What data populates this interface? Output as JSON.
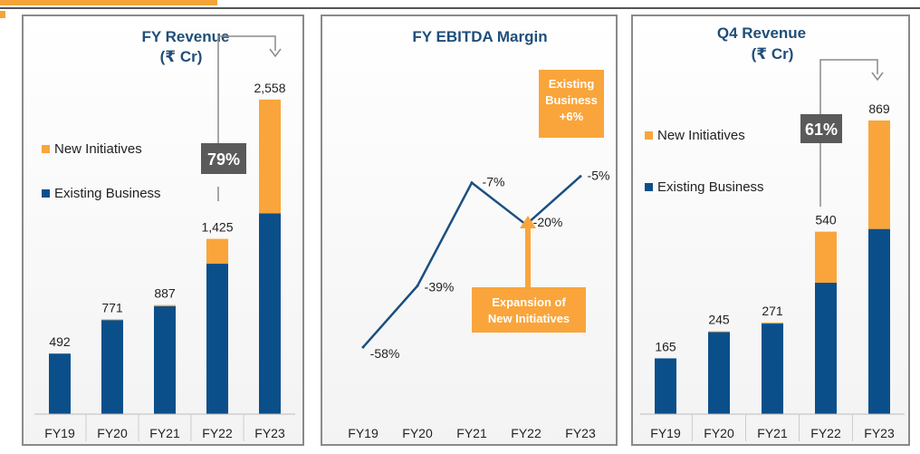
{
  "colors": {
    "existing": "#0b4f8a",
    "new": "#f9a53b",
    "title": "#1f4e79",
    "growth_box": "#5a5a5a",
    "callout": "#f9a53b"
  },
  "chart_data": [
    {
      "type": "bar",
      "stacked": true,
      "title": "FY Revenue",
      "subtitle": "(₹ Cr)",
      "categories": [
        "FY19",
        "FY20",
        "FY21",
        "FY22",
        "FY23"
      ],
      "totals": [
        "492",
        "771",
        "887",
        "1,425",
        "2,558"
      ],
      "series": [
        {
          "name": "Existing Business",
          "values": [
            492,
            765,
            877,
            1223,
            1632
          ]
        },
        {
          "name": "New Initiatives",
          "values": [
            0,
            6,
            10,
            202,
            926
          ]
        }
      ],
      "legend": "left",
      "growth_badge": "79%",
      "ylim": [
        0,
        2800
      ]
    },
    {
      "type": "line",
      "title": "FY EBITDA Margin",
      "categories": [
        "FY19",
        "FY20",
        "FY21",
        "FY22",
        "FY23"
      ],
      "values": [
        -58,
        -39,
        -7,
        -20,
        -5
      ],
      "labels": [
        "-58%",
        "-39%",
        "-7%",
        "-20%",
        "-5%"
      ],
      "annotations": {
        "top": [
          "Existing",
          "Business",
          "+6%"
        ],
        "bottom": [
          "Expansion of",
          "New Initiatives"
        ]
      },
      "ylim": [
        -65,
        5
      ]
    },
    {
      "type": "bar",
      "stacked": true,
      "title": "Q4 Revenue",
      "subtitle": "(₹ Cr)",
      "categories": [
        "FY19",
        "FY20",
        "FY21",
        "FY22",
        "FY23"
      ],
      "totals": [
        "165",
        "245",
        "271",
        "540",
        "869"
      ],
      "series": [
        {
          "name": "Existing Business",
          "values": [
            165,
            243,
            268,
            389,
            548
          ]
        },
        {
          "name": "New Initiatives",
          "values": [
            0,
            2,
            3,
            151,
            321
          ]
        }
      ],
      "legend": "left",
      "growth_badge": "61%",
      "ylim": [
        0,
        960
      ]
    }
  ]
}
